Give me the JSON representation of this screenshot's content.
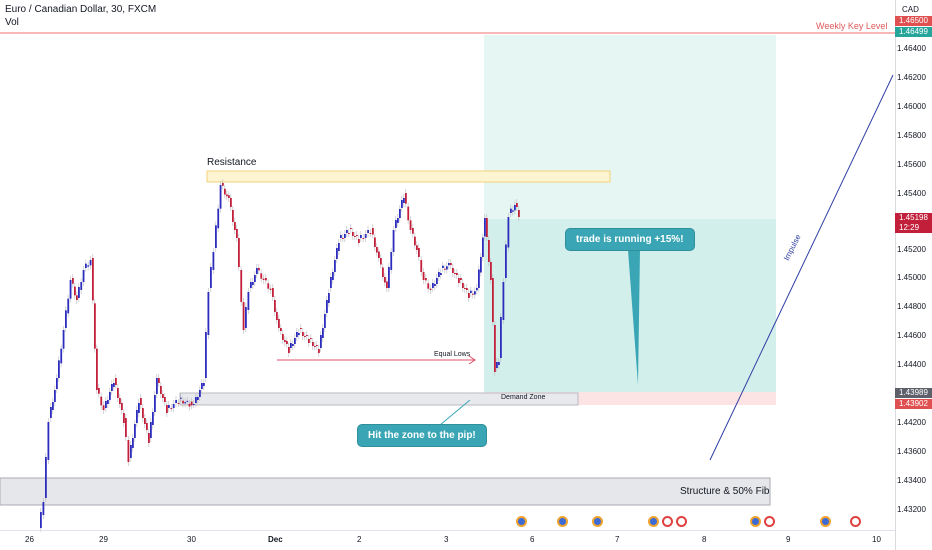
{
  "header": {
    "title": "Euro / Canadian Dollar, 30, FXCM",
    "vol": "Vol"
  },
  "y_axis": {
    "currency": "CAD",
    "ticks": [
      "1.46400",
      "1.46200",
      "1.46000",
      "1.45800",
      "1.45600",
      "1.45400",
      "1.45200",
      "1.45000",
      "1.44800",
      "1.44600",
      "1.44400",
      "1.44200",
      "1.43800",
      "1.43600",
      "1.43400",
      "1.43200"
    ],
    "weekly_level_badge": "1.46500",
    "weekly_level_badge_2": "1.46499",
    "current_price": "1.45198",
    "countdown": "12:29",
    "demand_badge_1": "1.43989",
    "demand_badge_2": "1.43902"
  },
  "x_axis": {
    "ticks": [
      "26",
      "29",
      "30",
      "Dec",
      "2",
      "3",
      "6",
      "7",
      "8",
      "9",
      "10"
    ]
  },
  "annotations": {
    "weekly_key_level": "Weekly Key Level",
    "resistance": "Resistance",
    "equal_lows": "Equal Lows",
    "demand_zone": "Demand Zone",
    "structure": "Structure & 50% Fib",
    "impulse": "Impulse",
    "bubble_trade": "trade is running +15%!",
    "bubble_zone": "Hit the zone to the pip!"
  },
  "colors": {
    "bull_candle": "#2d2dbd",
    "bear_candle": "#c21f3a",
    "weekly_line": "#f07070",
    "profit_zone": "#d6f0ee",
    "loss_zone": "#fde4e4",
    "bubble": "#3aa6b5"
  },
  "events": [
    "blue",
    "blue",
    "blue",
    "blue",
    "red",
    "red",
    "blue",
    "red",
    "blue",
    "red",
    "blue"
  ]
}
